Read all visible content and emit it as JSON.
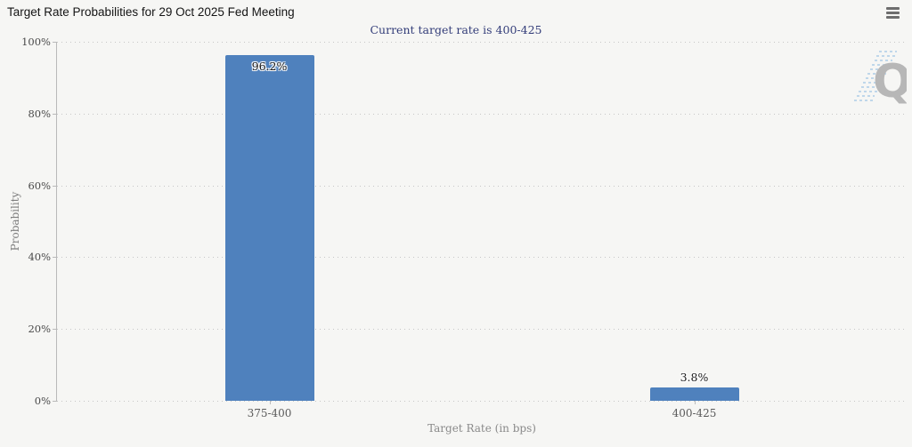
{
  "header": {
    "title": "Target Rate Probabilities for 29 Oct 2025 Fed Meeting",
    "menu_icon": "hamburger-icon"
  },
  "subtitle": "Current target rate is 400-425",
  "watermark": {
    "letter": "Q"
  },
  "colors": {
    "background": "#f6f6f4",
    "bar": "#4f81bd",
    "subtitle_text": "#333d79",
    "grid": "#c6c6c6",
    "axis": "#b9b9b9",
    "watermark_q": "#b7b7b7",
    "watermark_dashes": "#bfd7ea"
  },
  "chart_data": {
    "type": "bar",
    "title": "Target Rate Probabilities for 29 Oct 2025 Fed Meeting",
    "subtitle": "Current target rate is 400-425",
    "categories": [
      "375-400",
      "400-425"
    ],
    "values": [
      96.2,
      3.8
    ],
    "value_labels": [
      "96.2%",
      "3.8%"
    ],
    "xlabel": "Target Rate (in bps)",
    "ylabel": "Probability",
    "ylim": [
      0,
      100
    ],
    "ytick_labels": [
      "0%",
      "20%",
      "40%",
      "60%",
      "80%",
      "100%"
    ],
    "grid": "horizontal-dotted",
    "legend": "none",
    "bar_color": "#4f81bd"
  }
}
